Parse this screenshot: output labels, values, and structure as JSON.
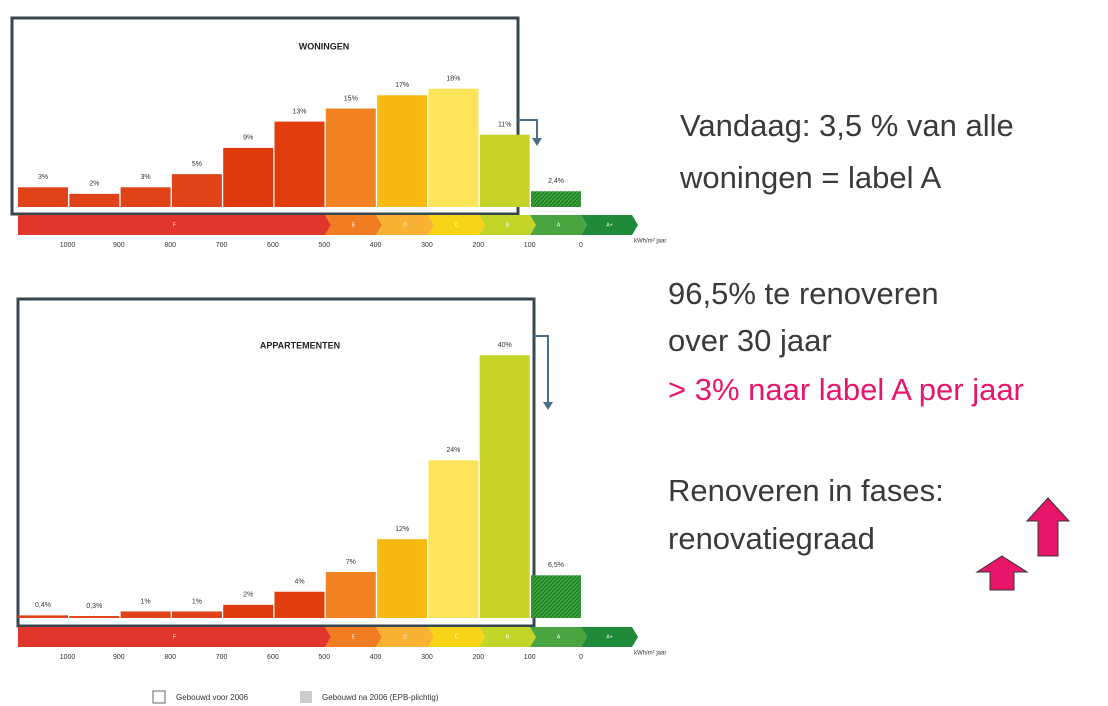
{
  "chart_data": [
    {
      "type": "bar",
      "title": "WONINGEN",
      "values": [
        3,
        2,
        3,
        5,
        9,
        13,
        15,
        17,
        18,
        11,
        2.4
      ],
      "value_labels": [
        "3%",
        "2%",
        "3%",
        "5%",
        "9%",
        "13%",
        "15%",
        "17%",
        "18%",
        "11%",
        "2,4%"
      ],
      "colors": [
        "#e0431a",
        "#e0431a",
        "#e0431a",
        "#e0431a",
        "#de3a0e",
        "#e23d0f",
        "#f28323",
        "#f8b912",
        "#fbe45a",
        "#c6d42a",
        "#3aa53a"
      ],
      "bands": [
        "F",
        "E",
        "D",
        "C",
        "B",
        "A",
        "A+"
      ],
      "xticks": [
        1000,
        900,
        800,
        700,
        600,
        500,
        400,
        300,
        200,
        100,
        0
      ],
      "xlabel": "kWh/m² jaar"
    },
    {
      "type": "bar",
      "title": "APPARTEMENTEN",
      "values": [
        0.4,
        0.3,
        1,
        1,
        2,
        4,
        7,
        12,
        24,
        40,
        6.5
      ],
      "value_labels": [
        "0,4%",
        "0,3%",
        "1%",
        "1%",
        "2%",
        "4%",
        "7%",
        "12%",
        "24%",
        "40%",
        "6,5%"
      ],
      "colors": [
        "#e0431a",
        "#e0431a",
        "#e0431a",
        "#e0431a",
        "#de3a0e",
        "#e23d0f",
        "#f28323",
        "#f8b912",
        "#fbe45a",
        "#c6d42a",
        "#3aa53a"
      ],
      "bands": [
        "F",
        "E",
        "D",
        "C",
        "B",
        "A",
        "A+"
      ],
      "xticks": [
        1000,
        900,
        800,
        700,
        600,
        500,
        400,
        300,
        200,
        100,
        0
      ],
      "xlabel": "kWh/m² jaar"
    }
  ],
  "text": {
    "line1": "Vandaag: 3,5 % van alle",
    "line2": "woningen = label A",
    "line3": "96,5% te renoveren",
    "line4": "over 30 jaar",
    "line5": "> 3% naar label A per jaar",
    "line6": "Renoveren in fases:",
    "line7": "renovatiegraad"
  },
  "legend": {
    "before": "Gebouwd voor 2006",
    "after": "Gebouwd na 2006 (EPB-plichtig)"
  }
}
